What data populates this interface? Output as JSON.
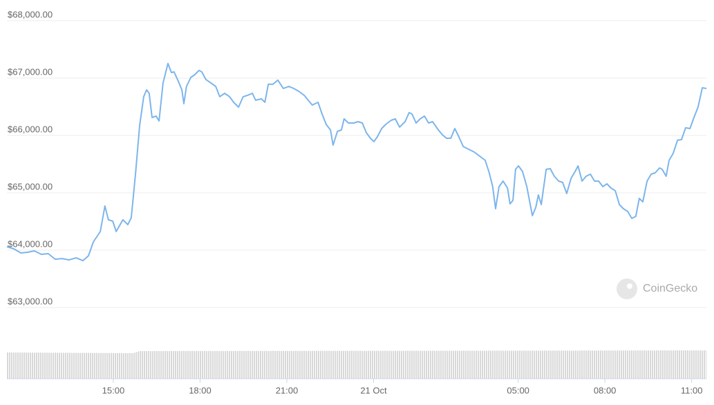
{
  "chart_data": {
    "type": "line",
    "color": "#7cb5ec",
    "grid": true,
    "watermark": "CoinGecko",
    "x": [
      11.32,
      11.56,
      11.8,
      12.04,
      12.27,
      12.51,
      12.75,
      12.99,
      13.23,
      13.47,
      13.71,
      13.95,
      14.14,
      14.31,
      14.55,
      14.71,
      14.83,
      14.98,
      15.1,
      15.33,
      15.5,
      15.62,
      15.77,
      15.91,
      16.05,
      16.15,
      16.24,
      16.34,
      16.48,
      16.58,
      16.72,
      16.89,
      17.01,
      17.1,
      17.25,
      17.37,
      17.44,
      17.53,
      17.68,
      17.82,
      17.96,
      18.06,
      18.2,
      18.37,
      18.54,
      18.68,
      18.85,
      19.02,
      19.16,
      19.33,
      19.49,
      19.64,
      19.81,
      19.92,
      20.12,
      20.24,
      20.36,
      20.52,
      20.69,
      20.88,
      21.07,
      21.24,
      21.41,
      21.6,
      21.74,
      21.88,
      22.08,
      22.22,
      22.36,
      22.51,
      22.6,
      22.75,
      22.89,
      22.98,
      23.13,
      23.32,
      23.46,
      23.61,
      23.75,
      23.89,
      24.01,
      24.13,
      24.28,
      24.42,
      24.61,
      24.75,
      24.9,
      25.09,
      25.23,
      25.33,
      25.47,
      25.61,
      25.76,
      25.9,
      26.04,
      26.24,
      26.38,
      26.52,
      26.67,
      26.81,
      26.95,
      27.1,
      27.29,
      27.48,
      27.67,
      27.86,
      28.0,
      28.12,
      28.22,
      28.34,
      28.48,
      28.63,
      28.72,
      28.82,
      28.91,
      29.01,
      29.15,
      29.3,
      29.39,
      29.49,
      29.61,
      29.7,
      29.8,
      29.97,
      30.11,
      30.25,
      30.4,
      30.54,
      30.68,
      30.83,
      30.97,
      31.07,
      31.21,
      31.35,
      31.5,
      31.64,
      31.78,
      31.93,
      32.07,
      32.21,
      32.36,
      32.5,
      32.64,
      32.79,
      32.93,
      33.07,
      33.19,
      33.31,
      33.46,
      33.6,
      33.74,
      33.89,
      33.98,
      34.12,
      34.22,
      34.36,
      34.51,
      34.65,
      34.79,
      34.94,
      35.08,
      35.22,
      35.37,
      35.51
    ],
    "values": [
      64060,
      64024,
      63952,
      63964,
      63988,
      63928,
      63940,
      63843,
      63855,
      63831,
      63867,
      63819,
      63904,
      64145,
      64325,
      64771,
      64530,
      64506,
      64325,
      64530,
      64446,
      64566,
      65349,
      66169,
      66675,
      66795,
      66735,
      66313,
      66337,
      66253,
      66916,
      67253,
      67096,
      67108,
      66940,
      66795,
      66554,
      66855,
      67012,
      67060,
      67133,
      67108,
      66976,
      66916,
      66855,
      66675,
      66735,
      66675,
      66578,
      66494,
      66675,
      66699,
      66735,
      66614,
      66638,
      66578,
      66892,
      66892,
      66964,
      66819,
      66855,
      66819,
      66771,
      66699,
      66614,
      66530,
      66578,
      66373,
      66193,
      66096,
      65831,
      66072,
      66096,
      66289,
      66217,
      66217,
      66241,
      66217,
      66048,
      65952,
      65892,
      65976,
      66120,
      66193,
      66265,
      66289,
      66145,
      66241,
      66398,
      66373,
      66217,
      66289,
      66337,
      66217,
      66241,
      66096,
      66012,
      65952,
      65952,
      66120,
      65976,
      65807,
      65759,
      65711,
      65639,
      65566,
      65349,
      65108,
      64723,
      65108,
      65205,
      65084,
      64807,
      64867,
      65410,
      65470,
      65373,
      65108,
      64867,
      64602,
      64747,
      64964,
      64795,
      65410,
      65422,
      65289,
      65205,
      65181,
      64988,
      65253,
      65373,
      65470,
      65205,
      65289,
      65325,
      65205,
      65205,
      65108,
      65157,
      65084,
      65036,
      64795,
      64723,
      64675,
      64554,
      64590,
      64904,
      64843,
      65205,
      65325,
      65349,
      65434,
      65410,
      65289,
      65566,
      65687,
      65916,
      65928,
      66133,
      66120,
      66313,
      66494,
      66831,
      66819
    ],
    "xlim": [
      11.32,
      35.51
    ],
    "xticks": [
      {
        "value": 15,
        "label": "15:00"
      },
      {
        "value": 18,
        "label": "18:00"
      },
      {
        "value": 21,
        "label": "21:00"
      },
      {
        "value": 24,
        "label": "21 Oct"
      },
      {
        "value": 29,
        "label": "05:00"
      },
      {
        "value": 32,
        "label": "08:00"
      },
      {
        "value": 35,
        "label": "11:00"
      }
    ],
    "ylim": [
      61760,
      68240
    ],
    "yticks": [
      {
        "value": 63000,
        "label": "$63,000.00"
      },
      {
        "value": 64000,
        "label": "$64,000.00"
      },
      {
        "value": 65000,
        "label": "$65,000.00"
      },
      {
        "value": 66000,
        "label": "$66,000.00"
      },
      {
        "value": 67000,
        "label": "$67,000.00"
      },
      {
        "value": 68000,
        "label": "$68,000.00"
      }
    ]
  }
}
